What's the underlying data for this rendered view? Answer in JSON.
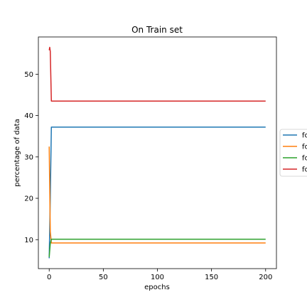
{
  "chart_data": {
    "type": "line",
    "title": "On Train set",
    "xlabel": "epochs",
    "ylabel": "percentage of data",
    "xlim": [
      -10,
      210
    ],
    "ylim": [
      3,
      59
    ],
    "xticks": [
      0,
      50,
      100,
      150,
      200
    ],
    "yticks": [
      10,
      20,
      30,
      40,
      50
    ],
    "grid": false,
    "legend_position": "right, outside plot (cut off)",
    "series": [
      {
        "name": "fc",
        "color": "#1f77b4",
        "x": [
          0,
          1,
          2,
          3,
          200
        ],
        "y": [
          5.5,
          20,
          37.2,
          37.2,
          37.2
        ]
      },
      {
        "name": "fc",
        "color": "#ff7f0e",
        "x": [
          0,
          1,
          2,
          200
        ],
        "y": [
          32.5,
          12,
          9.2,
          9.2
        ]
      },
      {
        "name": "fc",
        "color": "#2ca02c",
        "x": [
          0,
          1,
          2,
          200
        ],
        "y": [
          5.8,
          9.0,
          10.1,
          10.1
        ]
      },
      {
        "name": "fc",
        "color": "#d62728",
        "x": [
          0,
          0.5,
          1,
          2,
          200
        ],
        "y": [
          55.8,
          56.5,
          55.5,
          43.5,
          43.5
        ]
      }
    ]
  }
}
